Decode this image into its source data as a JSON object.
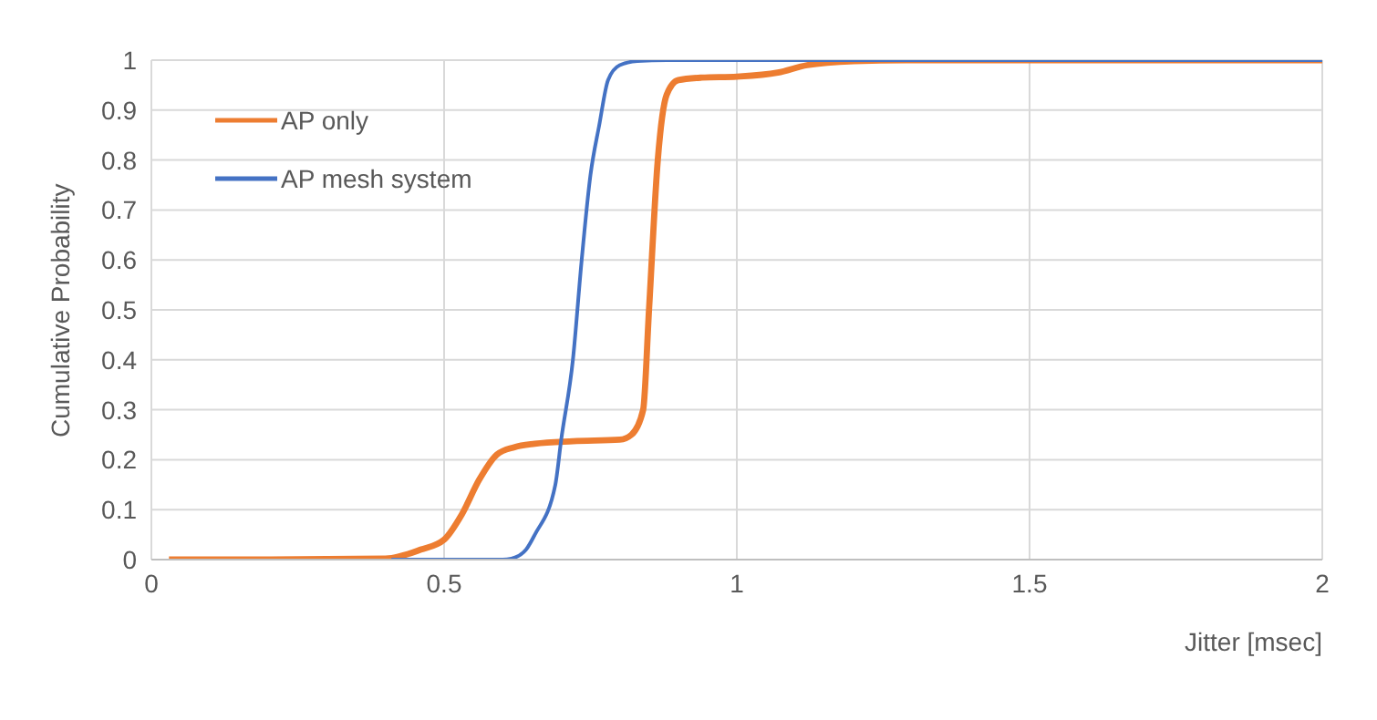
{
  "chart_data": {
    "type": "line",
    "xlabel": "Jitter [msec]",
    "ylabel": "Cumulative Probability",
    "xlim": [
      0,
      2
    ],
    "xticks": [
      0,
      0.5,
      1,
      1.5,
      2
    ],
    "ylim": [
      0,
      1
    ],
    "yticks": [
      0,
      0.1,
      0.2,
      0.3,
      0.4,
      0.5,
      0.6,
      0.7,
      0.8,
      0.9,
      1
    ],
    "grid": true,
    "legend": "top left",
    "marker": "none",
    "line_style": "solid",
    "series": [
      {
        "name": "AP only",
        "color": "#ed7d31",
        "x": [
          0.03,
          0.2,
          0.4,
          0.46,
          0.5,
          0.53,
          0.56,
          0.59,
          0.62,
          0.655,
          0.72,
          0.8,
          0.82,
          0.84,
          0.85,
          0.865,
          0.88,
          0.9,
          0.94,
          1.0,
          1.07,
          1.12,
          1.2,
          1.29,
          2
        ],
        "values": [
          0,
          0,
          0.002,
          0.02,
          0.04,
          0.09,
          0.16,
          0.21,
          0.225,
          0.232,
          0.237,
          0.24,
          0.25,
          0.3,
          0.5,
          0.8,
          0.93,
          0.96,
          0.965,
          0.967,
          0.975,
          0.99,
          0.998,
          1,
          1
        ]
      },
      {
        "name": "AP mesh system",
        "color": "#4472c4",
        "x": [
          0.41,
          0.6,
          0.615,
          0.64,
          0.655,
          0.69,
          0.7,
          0.72,
          0.735,
          0.75,
          0.765,
          0.78,
          0.8,
          0.83,
          0.88,
          2
        ],
        "values": [
          0,
          0,
          0.002,
          0.02,
          0.05,
          0.15,
          0.24,
          0.4,
          0.6,
          0.77,
          0.87,
          0.96,
          0.99,
          0.998,
          1,
          1
        ]
      }
    ]
  }
}
